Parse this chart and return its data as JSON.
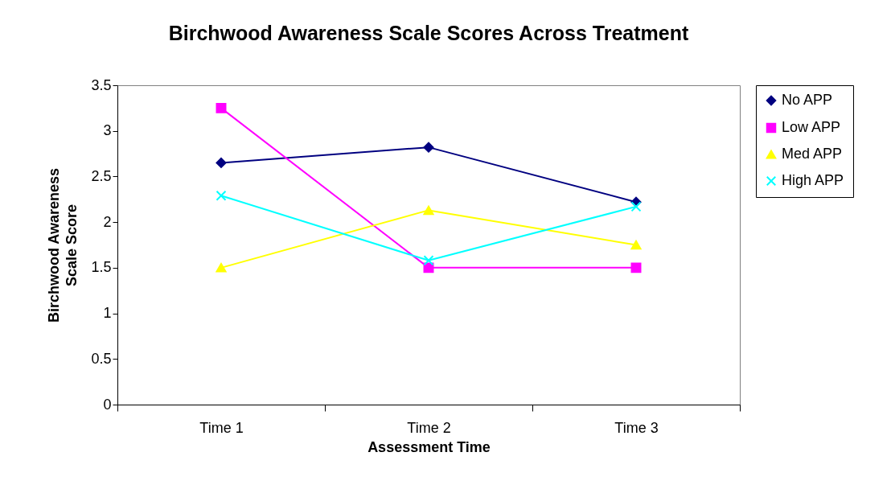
{
  "chart_data": {
    "type": "line",
    "title": "Birchwood Awareness Scale Scores Across Treatment",
    "xlabel": "Assessment Time",
    "ylabel": "Birchwood Awareness Scale Score",
    "categories": [
      "Time 1",
      "Time 2",
      "Time 3"
    ],
    "ylim": [
      0,
      3.5
    ],
    "yticks": [
      0,
      0.5,
      1,
      1.5,
      2,
      2.5,
      3,
      3.5
    ],
    "grid": false,
    "legend": "right",
    "series": [
      {
        "name": "No APP",
        "color": "#000080",
        "marker": "diamond",
        "values": [
          2.65,
          2.82,
          2.22
        ]
      },
      {
        "name": "Low APP",
        "color": "#ff00ff",
        "marker": "square",
        "values": [
          3.25,
          1.5,
          1.5
        ]
      },
      {
        "name": "Med APP",
        "color": "#ffff00",
        "marker": "triangle",
        "values": [
          1.5,
          2.13,
          1.75
        ]
      },
      {
        "name": "High APP",
        "color": "#00ffff",
        "marker": "cross",
        "values": [
          2.29,
          1.58,
          2.17
        ]
      }
    ]
  }
}
